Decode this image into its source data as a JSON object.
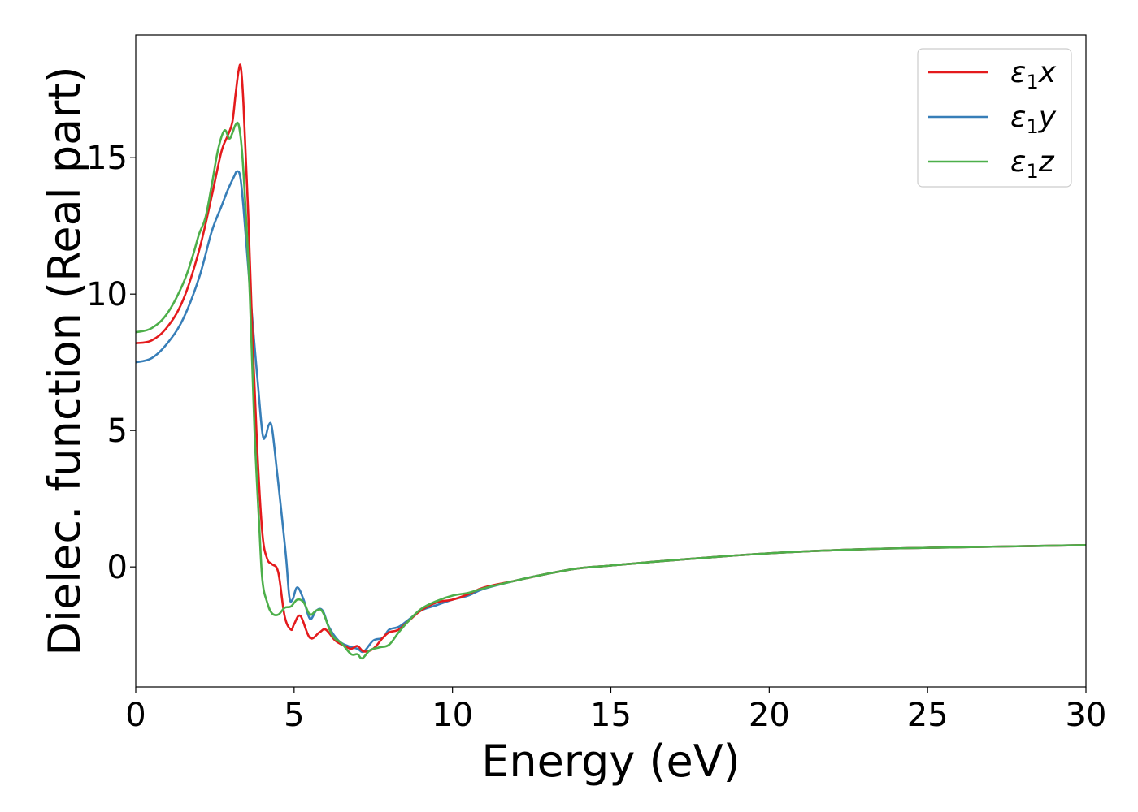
{
  "chart_data": {
    "type": "line",
    "title": "",
    "xlabel": "Energy (eV)",
    "ylabel": "Dielec. function (Real part)",
    "xlim": [
      0,
      30
    ],
    "ylim": [
      -4.4,
      19.5
    ],
    "xticks": [
      0,
      5,
      10,
      15,
      20,
      25,
      30
    ],
    "yticks": [
      0,
      5,
      10,
      15
    ],
    "grid": false,
    "legend_position": "top-right",
    "series": [
      {
        "name": "ε1x",
        "legend_base": "ε",
        "legend_sub": "1",
        "legend_var": "x",
        "color": "#e41a1c",
        "x": [
          0,
          0.5,
          1.0,
          1.5,
          2.0,
          2.4,
          2.7,
          2.9,
          3.05,
          3.15,
          3.25,
          3.32,
          3.4,
          3.55,
          3.7,
          3.85,
          4.0,
          4.15,
          4.3,
          4.5,
          4.7,
          4.9,
          5.0,
          5.2,
          5.5,
          5.8,
          6.0,
          6.3,
          6.6,
          6.8,
          7.0,
          7.2,
          7.5,
          7.8,
          8.0,
          8.3,
          8.6,
          9.0,
          9.5,
          10.0,
          10.5,
          11.0,
          12.0,
          13.0,
          14.0,
          15.0,
          17.0,
          20.0,
          23.0,
          26.0,
          30.0
        ],
        "y": [
          8.2,
          8.3,
          8.8,
          9.8,
          11.6,
          13.6,
          15.2,
          15.8,
          16.3,
          17.3,
          18.2,
          18.3,
          17.0,
          13.0,
          8.0,
          4.0,
          1.2,
          0.3,
          0.1,
          -0.2,
          -1.8,
          -2.3,
          -2.1,
          -1.8,
          -2.6,
          -2.4,
          -2.3,
          -2.7,
          -2.9,
          -3.0,
          -2.9,
          -3.1,
          -3.0,
          -2.6,
          -2.4,
          -2.3,
          -2.0,
          -1.6,
          -1.3,
          -1.2,
          -1.0,
          -0.75,
          -0.5,
          -0.25,
          -0.05,
          0.05,
          0.25,
          0.5,
          0.65,
          0.72,
          0.8
        ]
      },
      {
        "name": "ε1y",
        "legend_base": "ε",
        "legend_sub": "1",
        "legend_var": "y",
        "color": "#377eb8",
        "x": [
          0,
          0.5,
          1.0,
          1.5,
          2.0,
          2.4,
          2.7,
          2.9,
          3.1,
          3.2,
          3.3,
          3.4,
          3.55,
          3.7,
          3.85,
          4.0,
          4.1,
          4.2,
          4.3,
          4.45,
          4.6,
          4.75,
          4.85,
          4.95,
          5.1,
          5.3,
          5.5,
          5.7,
          5.9,
          6.1,
          6.4,
          6.7,
          7.0,
          7.2,
          7.5,
          7.8,
          8.0,
          8.3,
          8.6,
          9.0,
          9.5,
          10.0,
          10.5,
          11.0,
          12.0,
          13.0,
          14.0,
          15.0,
          17.0,
          20.0,
          23.0,
          26.0,
          30.0
        ],
        "y": [
          7.5,
          7.65,
          8.2,
          9.1,
          10.6,
          12.3,
          13.2,
          13.8,
          14.3,
          14.5,
          14.3,
          13.2,
          11.0,
          8.8,
          6.8,
          4.9,
          4.8,
          5.2,
          5.1,
          3.6,
          2.0,
          0.3,
          -1.1,
          -1.2,
          -0.75,
          -1.2,
          -1.9,
          -1.6,
          -1.6,
          -2.2,
          -2.7,
          -2.9,
          -3.0,
          -3.1,
          -2.7,
          -2.6,
          -2.3,
          -2.2,
          -1.95,
          -1.6,
          -1.4,
          -1.2,
          -1.05,
          -0.8,
          -0.5,
          -0.25,
          -0.05,
          0.05,
          0.25,
          0.5,
          0.65,
          0.72,
          0.8
        ]
      },
      {
        "name": "ε1z",
        "legend_base": "ε",
        "legend_sub": "1",
        "legend_var": "z",
        "color": "#4daf4a",
        "x": [
          0,
          0.5,
          1.0,
          1.5,
          1.8,
          2.0,
          2.2,
          2.4,
          2.6,
          2.8,
          2.95,
          3.05,
          3.15,
          3.25,
          3.35,
          3.45,
          3.6,
          3.75,
          3.9,
          4.0,
          4.15,
          4.3,
          4.5,
          4.7,
          4.9,
          5.1,
          5.3,
          5.5,
          5.7,
          5.9,
          6.2,
          6.5,
          6.8,
          7.0,
          7.15,
          7.4,
          7.7,
          8.0,
          8.3,
          8.6,
          9.0,
          9.5,
          10.0,
          10.5,
          11.0,
          12.0,
          13.0,
          14.0,
          15.0,
          17.0,
          20.0,
          23.0,
          26.0,
          30.0
        ],
        "y": [
          8.6,
          8.75,
          9.3,
          10.4,
          11.4,
          12.2,
          12.8,
          14.0,
          15.3,
          16.0,
          15.7,
          15.9,
          16.2,
          16.2,
          15.3,
          13.5,
          10.0,
          5.0,
          1.5,
          -0.5,
          -1.3,
          -1.7,
          -1.75,
          -1.5,
          -1.45,
          -1.2,
          -1.3,
          -1.75,
          -1.6,
          -1.65,
          -2.5,
          -2.8,
          -3.2,
          -3.2,
          -3.35,
          -3.05,
          -2.95,
          -2.85,
          -2.4,
          -2.0,
          -1.55,
          -1.25,
          -1.05,
          -0.95,
          -0.78,
          -0.5,
          -0.25,
          -0.05,
          0.05,
          0.25,
          0.5,
          0.65,
          0.72,
          0.8
        ]
      }
    ]
  }
}
